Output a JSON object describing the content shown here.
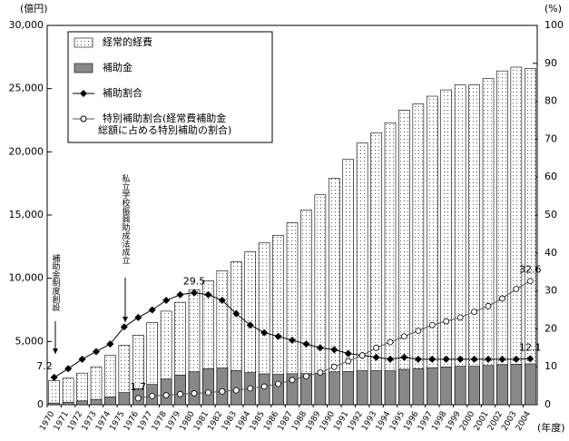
{
  "chart_data": {
    "type": "bar",
    "y_label": "(億円)",
    "y2_label": "(%)",
    "x_label": "(年度)",
    "categories": [
      "1970",
      "1971",
      "1972",
      "1973",
      "1974",
      "1975",
      "1976",
      "1977",
      "1978",
      "1979",
      "1980",
      "1981",
      "1982",
      "1983",
      "1984",
      "1985",
      "1986",
      "1987",
      "1988",
      "1989",
      "1990",
      "1991",
      "1992",
      "1993",
      "1994",
      "1995",
      "1996",
      "1997",
      "1998",
      "1999",
      "2000",
      "2001",
      "2002",
      "2003",
      "2004"
    ],
    "series": [
      {
        "name": "経常的経費",
        "type": "bar",
        "color": "#ffffff",
        "values": [
          1900,
          2100,
          2500,
          3000,
          3900,
          4700,
          5500,
          6500,
          7400,
          8100,
          9100,
          9800,
          10600,
          11300,
          12100,
          12800,
          13400,
          14400,
          15400,
          16600,
          17900,
          19400,
          20700,
          21500,
          22300,
          23300,
          23800,
          24400,
          24900,
          25300,
          25300,
          25800,
          26400,
          26700,
          26600
        ]
      },
      {
        "name": "補助金",
        "type": "bar",
        "color": "#888888",
        "values": [
          137,
          200,
          300,
          420,
          620,
          960,
          1280,
          1600,
          2030,
          2350,
          2600,
          2840,
          2900,
          2700,
          2540,
          2440,
          2400,
          2450,
          2460,
          2490,
          2600,
          2620,
          2690,
          2690,
          2680,
          2800,
          2860,
          2930,
          2990,
          3040,
          3040,
          3100,
          3170,
          3200,
          3230
        ]
      },
      {
        "name": "補助割合",
        "type": "line",
        "axis": "y2",
        "color": "#000000",
        "marker": "diamond",
        "values": [
          7.2,
          9.5,
          12,
          14,
          16,
          20.5,
          23,
          25,
          27.5,
          29,
          29.5,
          29,
          27.5,
          24,
          21,
          19,
          18,
          17,
          16,
          15,
          14.5,
          13.5,
          13,
          12.5,
          12,
          12.5,
          12,
          12,
          12,
          12,
          12,
          12,
          12,
          12,
          12.1
        ],
        "value_labels": [
          "7.2",
          null,
          null,
          null,
          null,
          null,
          null,
          null,
          null,
          null,
          "29.5",
          null,
          null,
          null,
          null,
          null,
          null,
          null,
          null,
          null,
          null,
          null,
          null,
          null,
          null,
          null,
          null,
          null,
          null,
          null,
          null,
          null,
          null,
          null,
          "12.1"
        ]
      },
      {
        "name": "特別補助割合(経常費補助金\n総額に占める特別補助の割合)",
        "type": "line",
        "axis": "y2",
        "color": "#555555",
        "marker": "circle",
        "values": [
          null,
          null,
          null,
          null,
          null,
          null,
          1.7,
          2.3,
          2.5,
          2.8,
          3,
          3.2,
          3.5,
          3.8,
          4.3,
          4.8,
          5.5,
          6.5,
          7.5,
          8.5,
          10,
          11.5,
          13,
          15,
          16.5,
          18,
          19.5,
          21,
          22,
          23,
          24.5,
          26,
          28,
          30.5,
          32.6
        ],
        "value_labels": [
          null,
          null,
          null,
          null,
          null,
          null,
          "1.7",
          null,
          null,
          null,
          null,
          null,
          null,
          null,
          null,
          null,
          null,
          null,
          null,
          null,
          null,
          null,
          null,
          null,
          null,
          null,
          null,
          null,
          null,
          null,
          null,
          null,
          null,
          null,
          "32.6"
        ]
      }
    ],
    "ylim": [
      0,
      30000
    ],
    "yticks": [
      0,
      {
        "value": 5000,
        "label": "5,000"
      },
      {
        "value": 10000,
        "label": "10,000"
      },
      {
        "value": 15000,
        "label": "15,000"
      },
      {
        "value": 20000,
        "label": "20,000"
      },
      {
        "value": 25000,
        "label": "25,000"
      },
      {
        "value": 30000,
        "label": "30,000"
      }
    ],
    "y2lim": [
      0,
      100
    ],
    "y2ticks": [
      0,
      10,
      20,
      30,
      40,
      50,
      60,
      70,
      80,
      90,
      100
    ],
    "annotations": [
      "補助金制度創設",
      "私立学校振興助成法成立"
    ],
    "legend": "upper left"
  }
}
